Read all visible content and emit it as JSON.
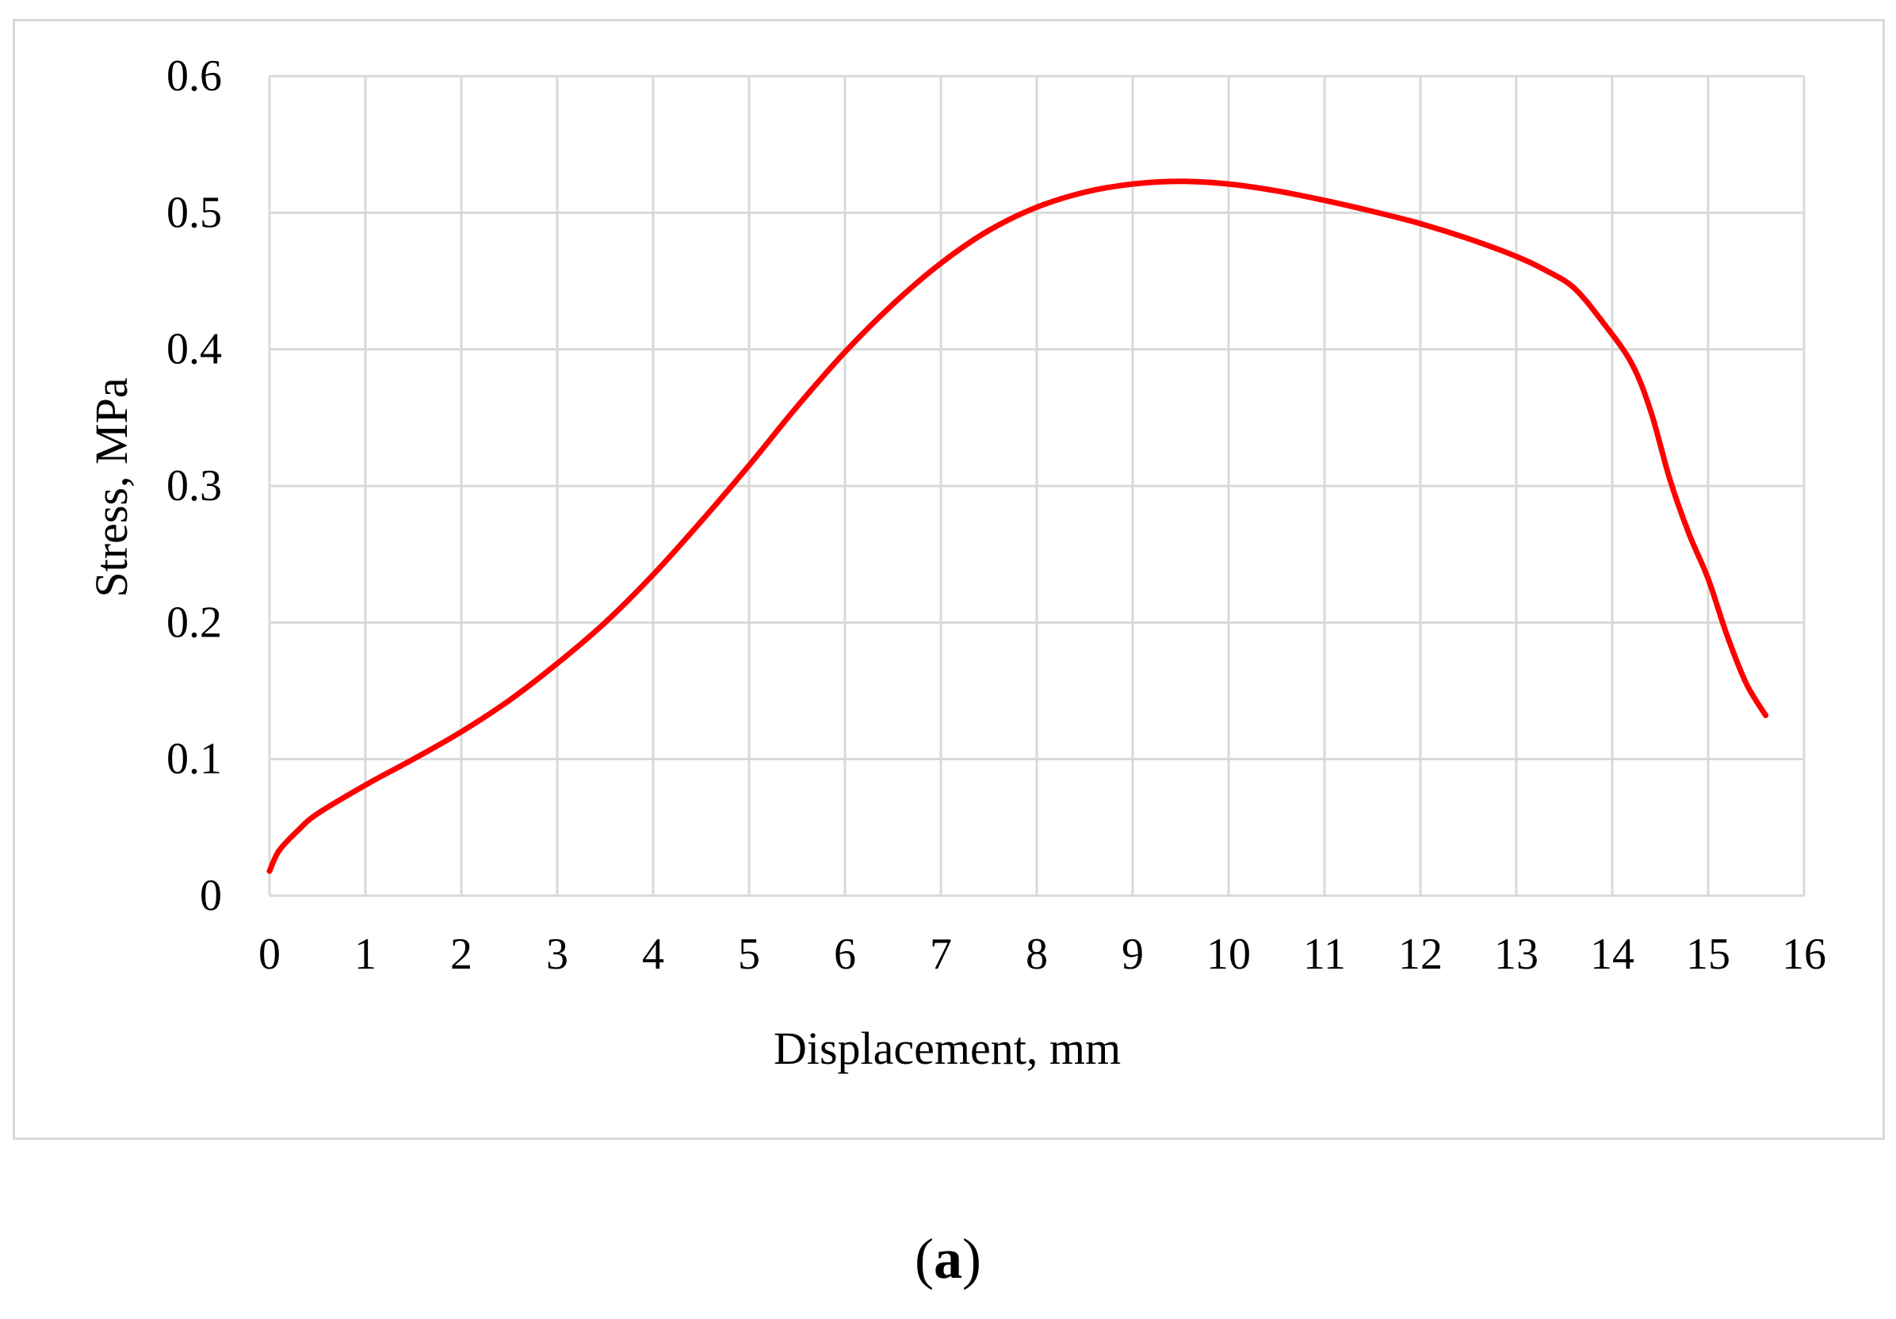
{
  "caption": {
    "open": "(",
    "letter": "a",
    "close": ")"
  },
  "chart_data": {
    "type": "line",
    "title": "",
    "xlabel": "Displacement, mm",
    "ylabel": "Stress, MPa",
    "xlim": [
      0,
      16
    ],
    "ylim": [
      0,
      0.6
    ],
    "x_ticks": [
      0,
      1,
      2,
      3,
      4,
      5,
      6,
      7,
      8,
      9,
      10,
      11,
      12,
      13,
      14,
      15,
      16
    ],
    "x_tick_labels": [
      "0",
      "1",
      "2",
      "3",
      "4",
      "5",
      "6",
      "7",
      "8",
      "9",
      "10",
      "11",
      "12",
      "13",
      "14",
      "15",
      "16"
    ],
    "y_ticks": [
      0,
      0.1,
      0.2,
      0.3,
      0.4,
      0.5,
      0.6
    ],
    "y_tick_labels": [
      "0",
      "0.1",
      "0.2",
      "0.3",
      "0.4",
      "0.5",
      "0.6"
    ],
    "grid": true,
    "legend": "none",
    "series": [
      {
        "color": "#ff0000",
        "x": [
          0,
          0.1,
          0.3,
          0.5,
          1.0,
          1.5,
          2.0,
          2.5,
          3.0,
          3.5,
          4.0,
          4.5,
          5.0,
          5.5,
          6.0,
          6.5,
          7.0,
          7.5,
          8.0,
          8.5,
          9.0,
          9.5,
          10.0,
          10.5,
          11.0,
          11.5,
          12.0,
          12.5,
          13.0,
          13.3,
          13.6,
          13.9,
          14.2,
          14.4,
          14.6,
          14.8,
          15.0,
          15.2,
          15.4,
          15.6
        ],
        "y": [
          0.018,
          0.033,
          0.048,
          0.06,
          0.081,
          0.1,
          0.12,
          0.143,
          0.17,
          0.2,
          0.235,
          0.274,
          0.315,
          0.358,
          0.398,
          0.433,
          0.463,
          0.487,
          0.504,
          0.515,
          0.521,
          0.523,
          0.521,
          0.516,
          0.509,
          0.501,
          0.492,
          0.481,
          0.468,
          0.458,
          0.445,
          0.42,
          0.39,
          0.355,
          0.305,
          0.265,
          0.232,
          0.19,
          0.155,
          0.132
        ]
      }
    ]
  }
}
